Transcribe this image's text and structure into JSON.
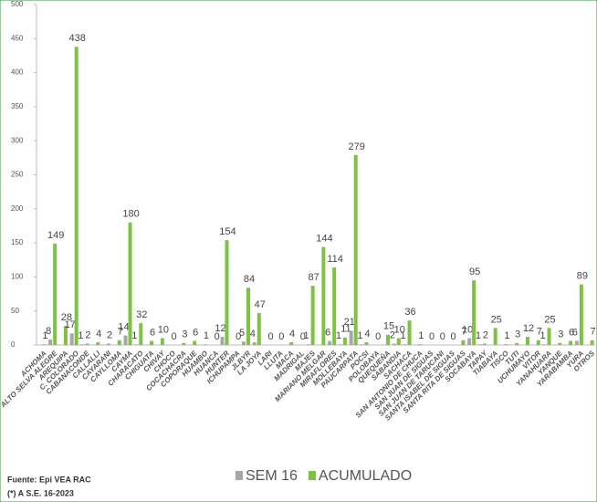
{
  "chart_data": {
    "type": "bar",
    "categories": [
      "ACHOMA",
      "ALTO SELVA ALEGRE",
      "AREQUIPA",
      "C. COLORADO",
      "CABANACONDE",
      "CALLALLI",
      "CAYARANI",
      "CAYLLOMA",
      "CAYMA",
      "CHARACATO",
      "CHIGUATA",
      "CHIVAY",
      "CHOCO",
      "COCACHACRA",
      "COPORAQUE",
      "HUAMBO",
      "HUANCA",
      "HUNTER",
      "ICHUPAMPA",
      "JLBYR",
      "LA JOYA",
      "LARI",
      "LLUTA",
      "MACA",
      "MADRIGAL",
      "MAJES",
      "MARIANO MELGAR",
      "MIRAFLORES",
      "MOLLEBAYA",
      "PAUCARPATA",
      "POCSI",
      "POLOBAYA",
      "QUEQUEÑA",
      "SABANDIA",
      "SACHACA",
      "SAN ANTONIO DE CHUCA",
      "SAN JUAN DE SIGUAS",
      "SAN JUAN DE TARUCANI",
      "SANTA ISABEL DE SIGUAS",
      "SANTA RITA DE SIGUAS",
      "SOCABAYA",
      "TAPAY",
      "TIABAYA",
      "TISCO",
      "TUTI",
      "UCHUMAYO",
      "VITOR",
      "YANAHUARA",
      "YANQUE",
      "YARABAMBA",
      "YURA",
      "OTROS"
    ],
    "series": [
      {
        "name": "SEM 16",
        "color": "#a6a6a6",
        "values": [
          null,
          8,
          null,
          17,
          1,
          null,
          null,
          null,
          14,
          1,
          null,
          null,
          null,
          null,
          null,
          null,
          null,
          12,
          null,
          5,
          4,
          null,
          null,
          null,
          null,
          1,
          null,
          6,
          1,
          21,
          1,
          null,
          null,
          2,
          1,
          null,
          null,
          null,
          null,
          null,
          10,
          1,
          null,
          null,
          null,
          null,
          null,
          1,
          null,
          null,
          6,
          null
        ]
      },
      {
        "name": "ACUMULADO",
        "color": "#7dc242",
        "values": [
          1,
          149,
          28,
          438,
          2,
          4,
          2,
          7,
          180,
          32,
          6,
          10,
          0,
          3,
          6,
          1,
          0,
          154,
          0,
          84,
          47,
          0,
          0,
          4,
          0,
          87,
          144,
          114,
          11,
          279,
          4,
          0,
          15,
          10,
          36,
          1,
          0,
          0,
          0,
          7,
          95,
          2,
          25,
          1,
          3,
          12,
          7,
          25,
          3,
          6,
          89,
          7
        ]
      }
    ],
    "ylim": [
      0,
      500
    ],
    "yticks": [
      0,
      50,
      100,
      150,
      200,
      250,
      300,
      350,
      400,
      450,
      500
    ],
    "source": "Fuente: Epi VEA RAC",
    "note": "(*) A S.E. 16-2023"
  }
}
